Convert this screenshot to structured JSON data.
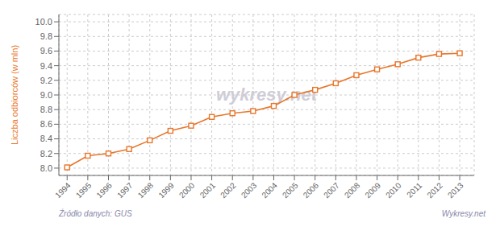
{
  "chart_data": {
    "type": "line",
    "y_label": "Liczba odbiorców (w mln)",
    "x": [
      1994,
      1995,
      1996,
      1997,
      1998,
      1999,
      2000,
      2001,
      2002,
      2003,
      2004,
      2005,
      2006,
      2007,
      2008,
      2009,
      2010,
      2011,
      2012,
      2013
    ],
    "values": [
      8.01,
      8.17,
      8.2,
      8.26,
      8.38,
      8.51,
      8.58,
      8.7,
      8.75,
      8.78,
      8.85,
      9.0,
      9.07,
      9.16,
      9.27,
      9.35,
      9.42,
      9.51,
      9.56,
      9.57
    ],
    "color": "#E8762B",
    "marker": "square",
    "xlim": [
      1993.6,
      2013.7
    ],
    "xticks": [
      1994,
      1995,
      1996,
      1997,
      1998,
      1999,
      2000,
      2001,
      2002,
      2003,
      2004,
      2005,
      2006,
      2007,
      2008,
      2009,
      2010,
      2011,
      2012,
      2013
    ],
    "ylim": [
      7.9,
      10.1
    ],
    "yticks": [
      {
        "value": 8.0,
        "label": "8.0"
      },
      8.2,
      8.4,
      8.6,
      8.8,
      {
        "value": 9.0,
        "label": "9.0"
      },
      9.2,
      9.4,
      9.6,
      9.8,
      {
        "value": 10.0,
        "label": "10.0"
      }
    ],
    "grid": true,
    "annotations": [
      "wykresy.net",
      "Źródło danych:  GUS",
      "Wykresy.net"
    ]
  }
}
